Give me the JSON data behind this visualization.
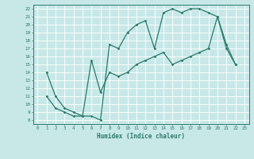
{
  "xlabel": "Humidex (Indice chaleur)",
  "bg_color": "#c8e8e8",
  "grid_color": "#ffffff",
  "line_color": "#2a7a6a",
  "xlim": [
    -0.5,
    23.5
  ],
  "ylim": [
    7.5,
    22.5
  ],
  "xticks": [
    0,
    1,
    2,
    3,
    4,
    5,
    6,
    7,
    8,
    9,
    10,
    11,
    12,
    13,
    14,
    15,
    16,
    17,
    18,
    19,
    20,
    21,
    22,
    23
  ],
  "yticks": [
    8,
    9,
    10,
    11,
    12,
    13,
    14,
    15,
    16,
    17,
    18,
    19,
    20,
    21,
    22
  ],
  "line1_x": [
    1,
    2,
    3,
    4,
    5,
    6,
    7,
    8,
    9,
    10,
    11,
    12,
    13,
    14,
    15,
    16,
    17,
    18,
    19,
    20,
    21,
    22
  ],
  "line1_y": [
    14,
    11,
    9.5,
    9,
    8.5,
    8.5,
    8,
    17.5,
    17,
    19,
    20,
    20.5,
    17,
    21.5,
    22,
    21.5,
    22,
    22,
    21.5,
    21,
    17.5,
    15
  ],
  "line2_x": [
    1,
    2,
    3,
    4,
    5,
    6,
    7,
    8,
    9,
    10,
    11,
    12,
    13,
    14,
    15,
    16,
    17,
    18,
    19,
    20,
    21,
    22
  ],
  "line2_y": [
    11,
    9.5,
    9,
    8.5,
    8.5,
    15.5,
    11.5,
    14,
    13.5,
    14,
    15,
    15.5,
    16,
    16.5,
    15,
    15.5,
    16,
    16.5,
    17,
    21,
    17,
    15
  ]
}
